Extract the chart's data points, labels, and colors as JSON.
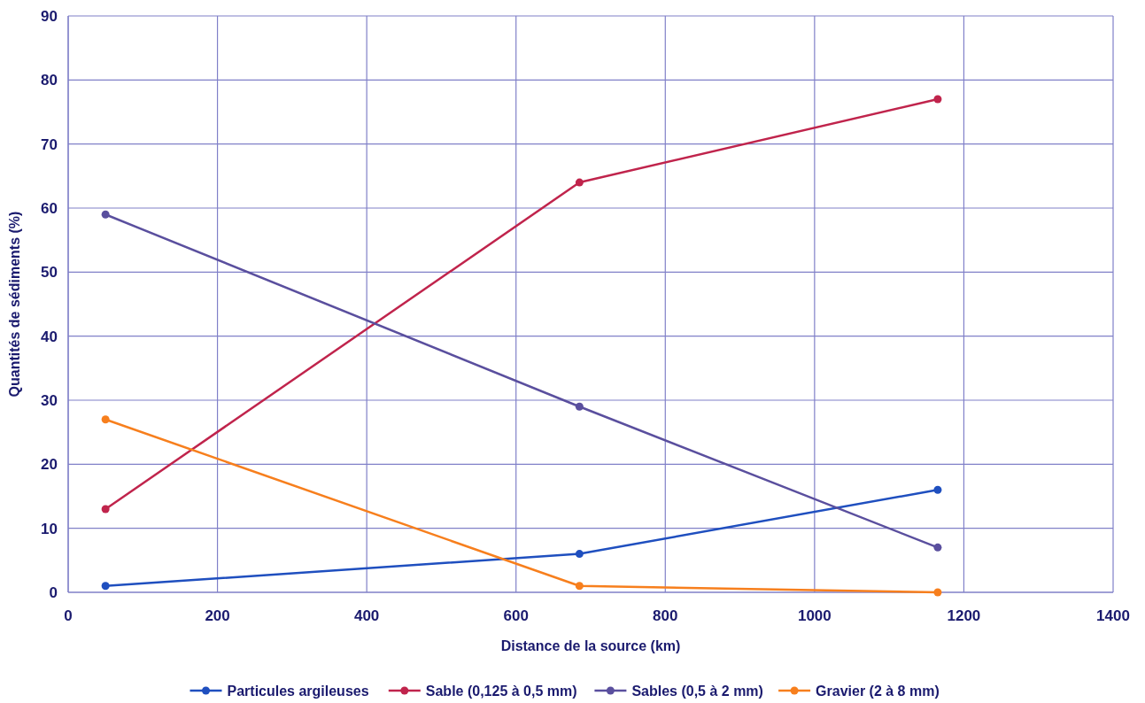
{
  "chart_data": {
    "type": "line",
    "xlabel": "Distance de la source (km)",
    "ylabel": "Quantités de sédiments (%)",
    "x": [
      50,
      685,
      1165
    ],
    "series": [
      {
        "name": "Particules argileuses",
        "color": "#1f4fbf",
        "values": [
          1,
          6,
          16
        ]
      },
      {
        "name": "Sable (0,125 à 0,5 mm)",
        "color": "#c0244c",
        "values": [
          13,
          64,
          77
        ]
      },
      {
        "name": "Sables (0,5 à 2 mm)",
        "color": "#5a4f9e",
        "values": [
          59,
          29,
          7
        ]
      },
      {
        "name": "Gravier (2 à 8 mm)",
        "color": "#f77f1d",
        "values": [
          27,
          1,
          0
        ]
      }
    ],
    "xlim": [
      0,
      1400
    ],
    "xticks": [
      0,
      200,
      400,
      600,
      800,
      1000,
      1200,
      1400
    ],
    "ylim": [
      0,
      90
    ],
    "yticks": [
      0,
      10,
      20,
      30,
      40,
      50,
      60,
      70,
      80,
      90
    ],
    "grid": true,
    "legend": "bottom",
    "marker": "circle",
    "line_style": "solid"
  }
}
